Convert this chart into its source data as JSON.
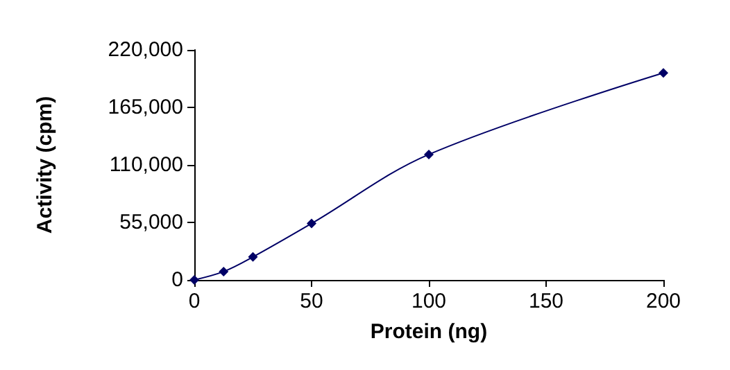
{
  "chart_data": {
    "type": "line",
    "xlabel": "Protein (ng)",
    "ylabel": "Activity (cpm)",
    "x": [
      0,
      12.5,
      25,
      50,
      100,
      200
    ],
    "series": [
      {
        "color": "#000066",
        "values": [
          0,
          8000,
          22000,
          54000,
          120000,
          198000
        ]
      }
    ],
    "xlim": [
      0,
      200
    ],
    "xticks": [
      0,
      50,
      100,
      150,
      200
    ],
    "ylim": [
      0,
      220000
    ],
    "yticks": [
      0,
      {
        "value": 55000,
        "label": "55,000"
      },
      {
        "value": 110000,
        "label": "110,000"
      },
      {
        "value": 165000,
        "label": "165,000"
      },
      {
        "value": 220000,
        "label": "220,000"
      }
    ],
    "grid": false,
    "marker": "diamond",
    "line_style": "solid"
  }
}
